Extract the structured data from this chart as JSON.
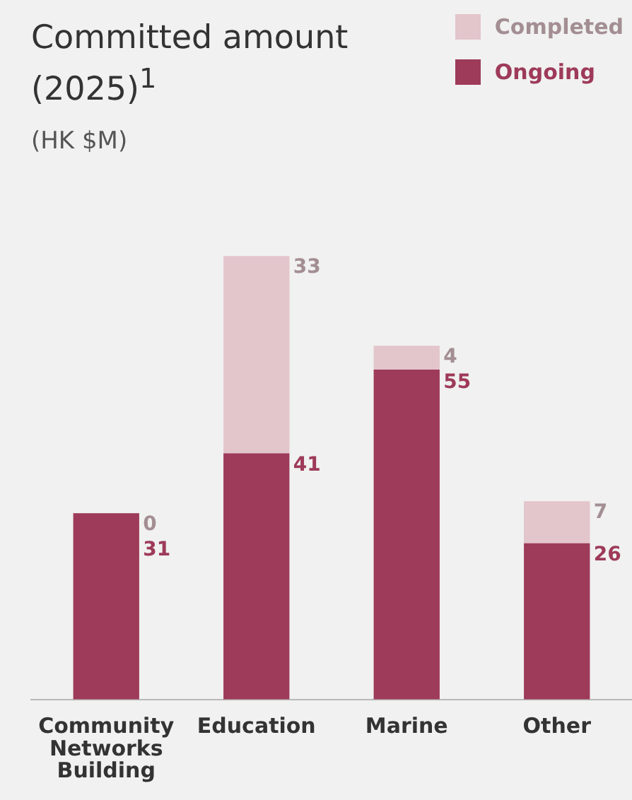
{
  "chart_data": {
    "type": "bar",
    "title": "Committed amount (2025)$^{1}$",
    "subtitle": "(HK $M)",
    "categories": [
      "Community Networks Building",
      "Education",
      "Marine",
      "Other"
    ],
    "stacked": true,
    "data_labels": true,
    "legend": "top right",
    "grid": false,
    "series": [
      {
        "name": "Ongoing",
        "color": "#9e3a5a",
        "values": [
          31,
          41,
          55,
          26
        ]
      },
      {
        "name": "Completed",
        "color": "#e3c5cc",
        "values": [
          0,
          33,
          4,
          7
        ]
      }
    ]
  }
}
